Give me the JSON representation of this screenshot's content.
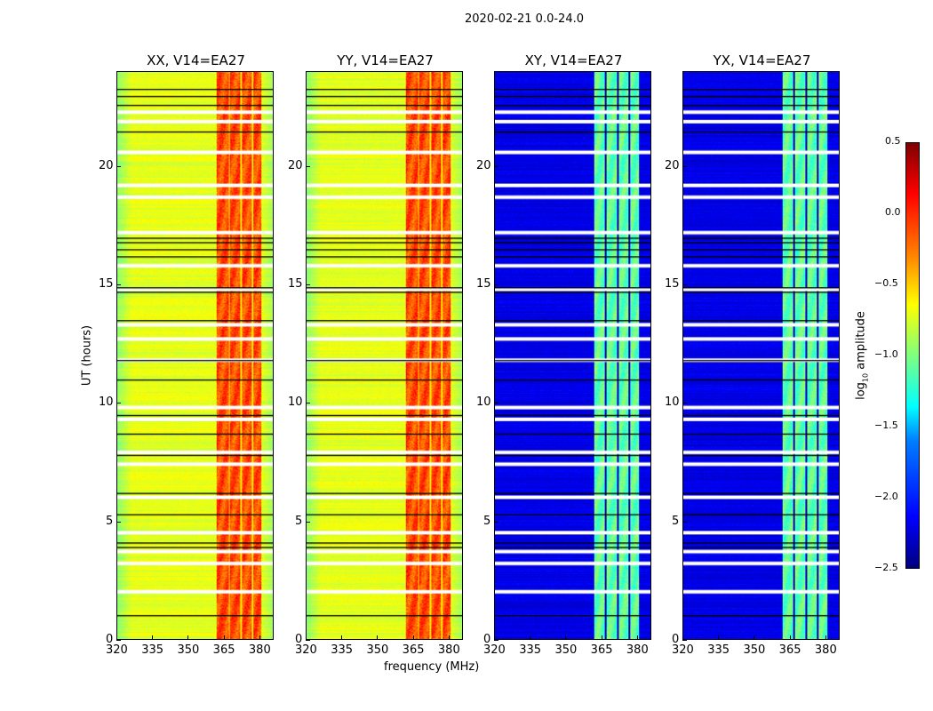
{
  "chart_data": {
    "type": "heatmap",
    "title": "2020-02-21 0.0-24.0",
    "xlabel": "frequency (MHz)",
    "ylabel": "UT (hours)",
    "xlim": [
      320,
      386
    ],
    "ylim": [
      0,
      24
    ],
    "xticks": [
      320,
      335,
      350,
      365,
      380
    ],
    "yticks": [
      0,
      5,
      10,
      15,
      20
    ],
    "colormap": "jet",
    "colorbar": {
      "label_prefix": "log",
      "label_sub": "10",
      "label_suffix": " amplitude",
      "vmin": -2.5,
      "vmax": 0.5,
      "ticks": [
        "0.5",
        "0.0",
        "−0.5",
        "−1.0",
        "−1.5",
        "−2.0",
        "−2.5"
      ],
      "tick_values": [
        0.5,
        0.0,
        -0.5,
        -1.0,
        -1.5,
        -2.0,
        -2.5
      ]
    },
    "panels": [
      {
        "title": "XX, V14=EA27",
        "baseline_log_amp": -0.7,
        "band_log_amp": -0.1,
        "band_mhz": [
          362,
          381
        ]
      },
      {
        "title": "YY, V14=EA27",
        "baseline_log_amp": -0.7,
        "band_log_amp": -0.1,
        "band_mhz": [
          362,
          381
        ]
      },
      {
        "title": "XY, V14=EA27",
        "baseline_log_amp": -2.2,
        "band_log_amp": -1.1,
        "band_mhz": [
          362,
          381
        ]
      },
      {
        "title": "YX, V14=EA27",
        "baseline_log_amp": -2.2,
        "band_log_amp": -1.1,
        "band_mhz": [
          362,
          381
        ]
      }
    ],
    "flagged_hours": [
      22.3,
      21.9,
      20.6,
      19.2,
      18.7,
      17.2,
      15.8,
      14.8,
      13.3,
      12.7,
      11.8,
      9.8,
      9.3,
      7.9,
      7.4,
      6.0,
      4.5,
      3.7,
      3.2,
      2.0
    ],
    "line_hours": [
      23.3,
      23.0,
      22.6,
      21.5,
      17.0,
      16.8,
      16.5,
      16.2,
      14.9,
      14.7,
      13.5,
      11.8,
      11.0,
      9.5,
      8.7,
      7.8,
      6.2,
      5.3,
      4.1,
      3.9,
      1.0
    ]
  }
}
